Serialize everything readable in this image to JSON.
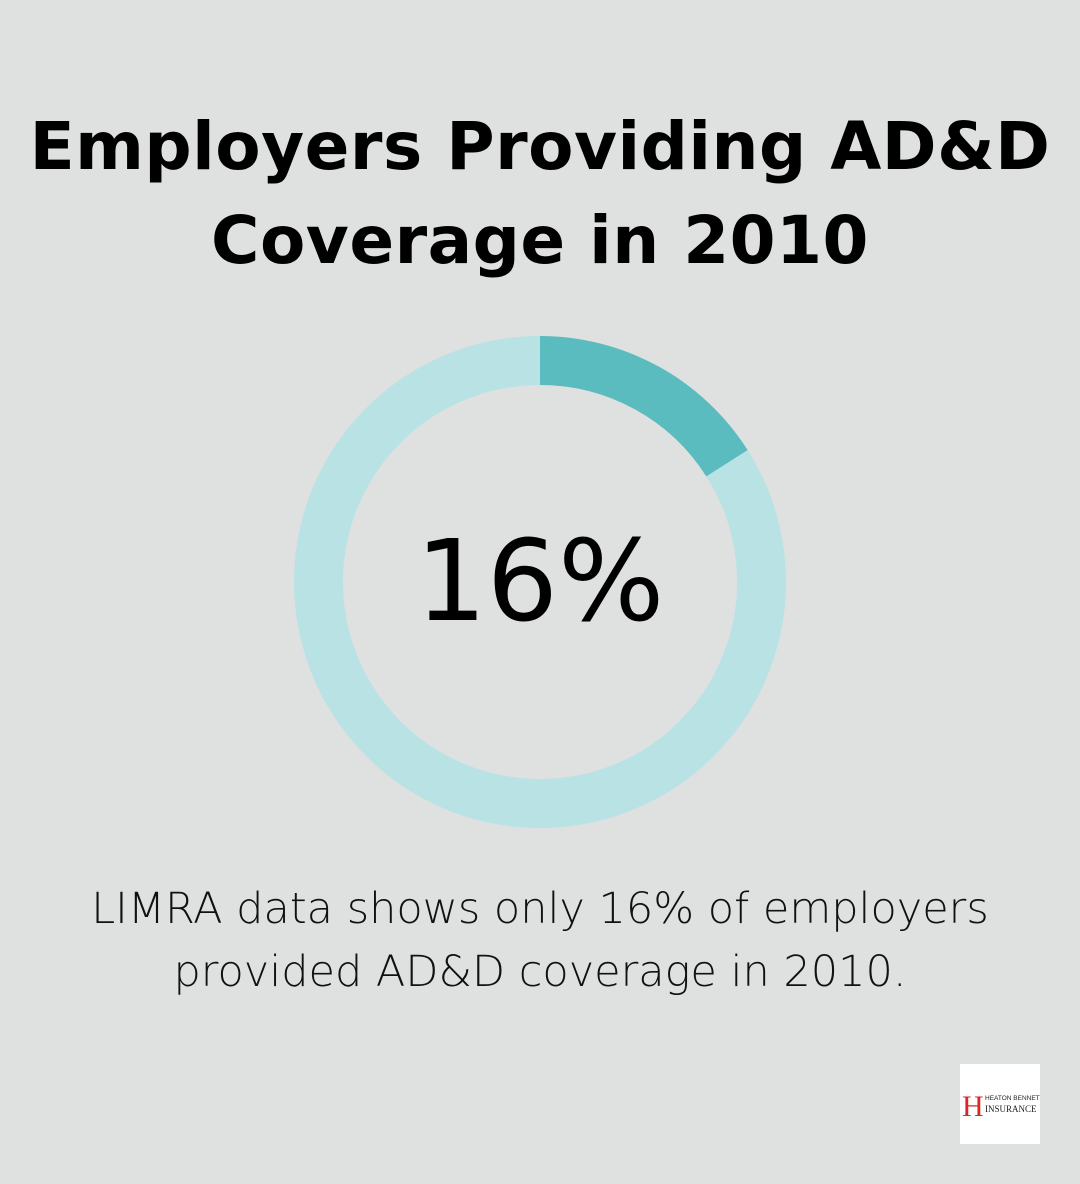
{
  "chart_data": {
    "type": "pie",
    "title": "Employers Providing AD&D Coverage in 2010",
    "values": [
      16,
      84
    ],
    "center_label": "16%",
    "colors": {
      "highlight": "#5bbcc0",
      "remainder": "#b9e2e4",
      "background": "#dfe1e0"
    }
  },
  "title_lines": [
    "Employers Providing AD&D",
    "Coverage in 2010"
  ],
  "caption_lines": [
    "LIMRA data shows only 16% of employers",
    "provided AD&D coverage in 2010."
  ],
  "logo": {
    "letter": "H",
    "line1": "HEATON BENNETT",
    "line2": "INSURANCE"
  }
}
